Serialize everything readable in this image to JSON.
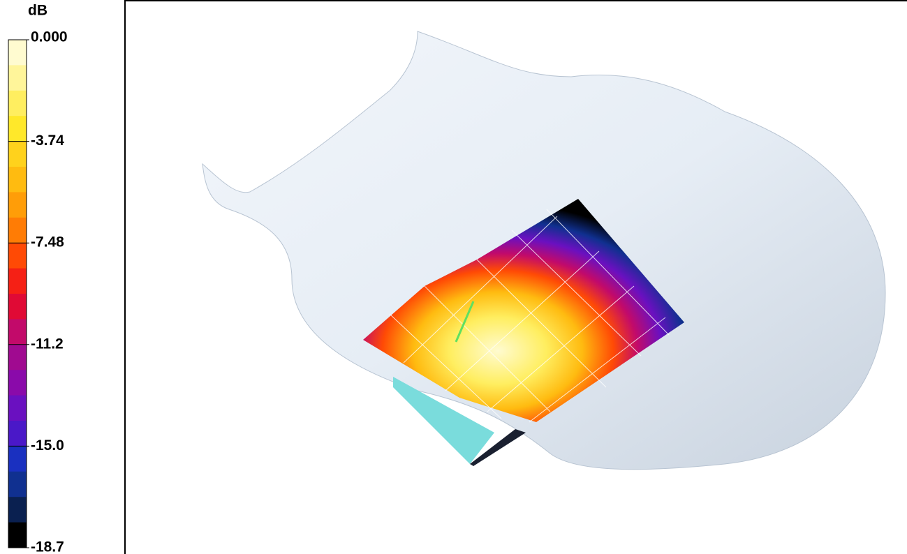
{
  "colorbar": {
    "unit": "dB",
    "ticks": [
      "0.000",
      "-3.74",
      "-7.48",
      "-11.2",
      "-15.0",
      "-18.7"
    ],
    "colors": [
      "#fffbd0",
      "#fff59a",
      "#ffee60",
      "#ffe82a",
      "#ffd21c",
      "#ffbb10",
      "#ff9d08",
      "#ff7c05",
      "#ff4a05",
      "#f52015",
      "#e00a35",
      "#c20a6a",
      "#a00a90",
      "#8a0aaa",
      "#6a10c0",
      "#4a18c8",
      "#1a30c0",
      "#103090",
      "#0a2050",
      "#000000"
    ]
  }
}
